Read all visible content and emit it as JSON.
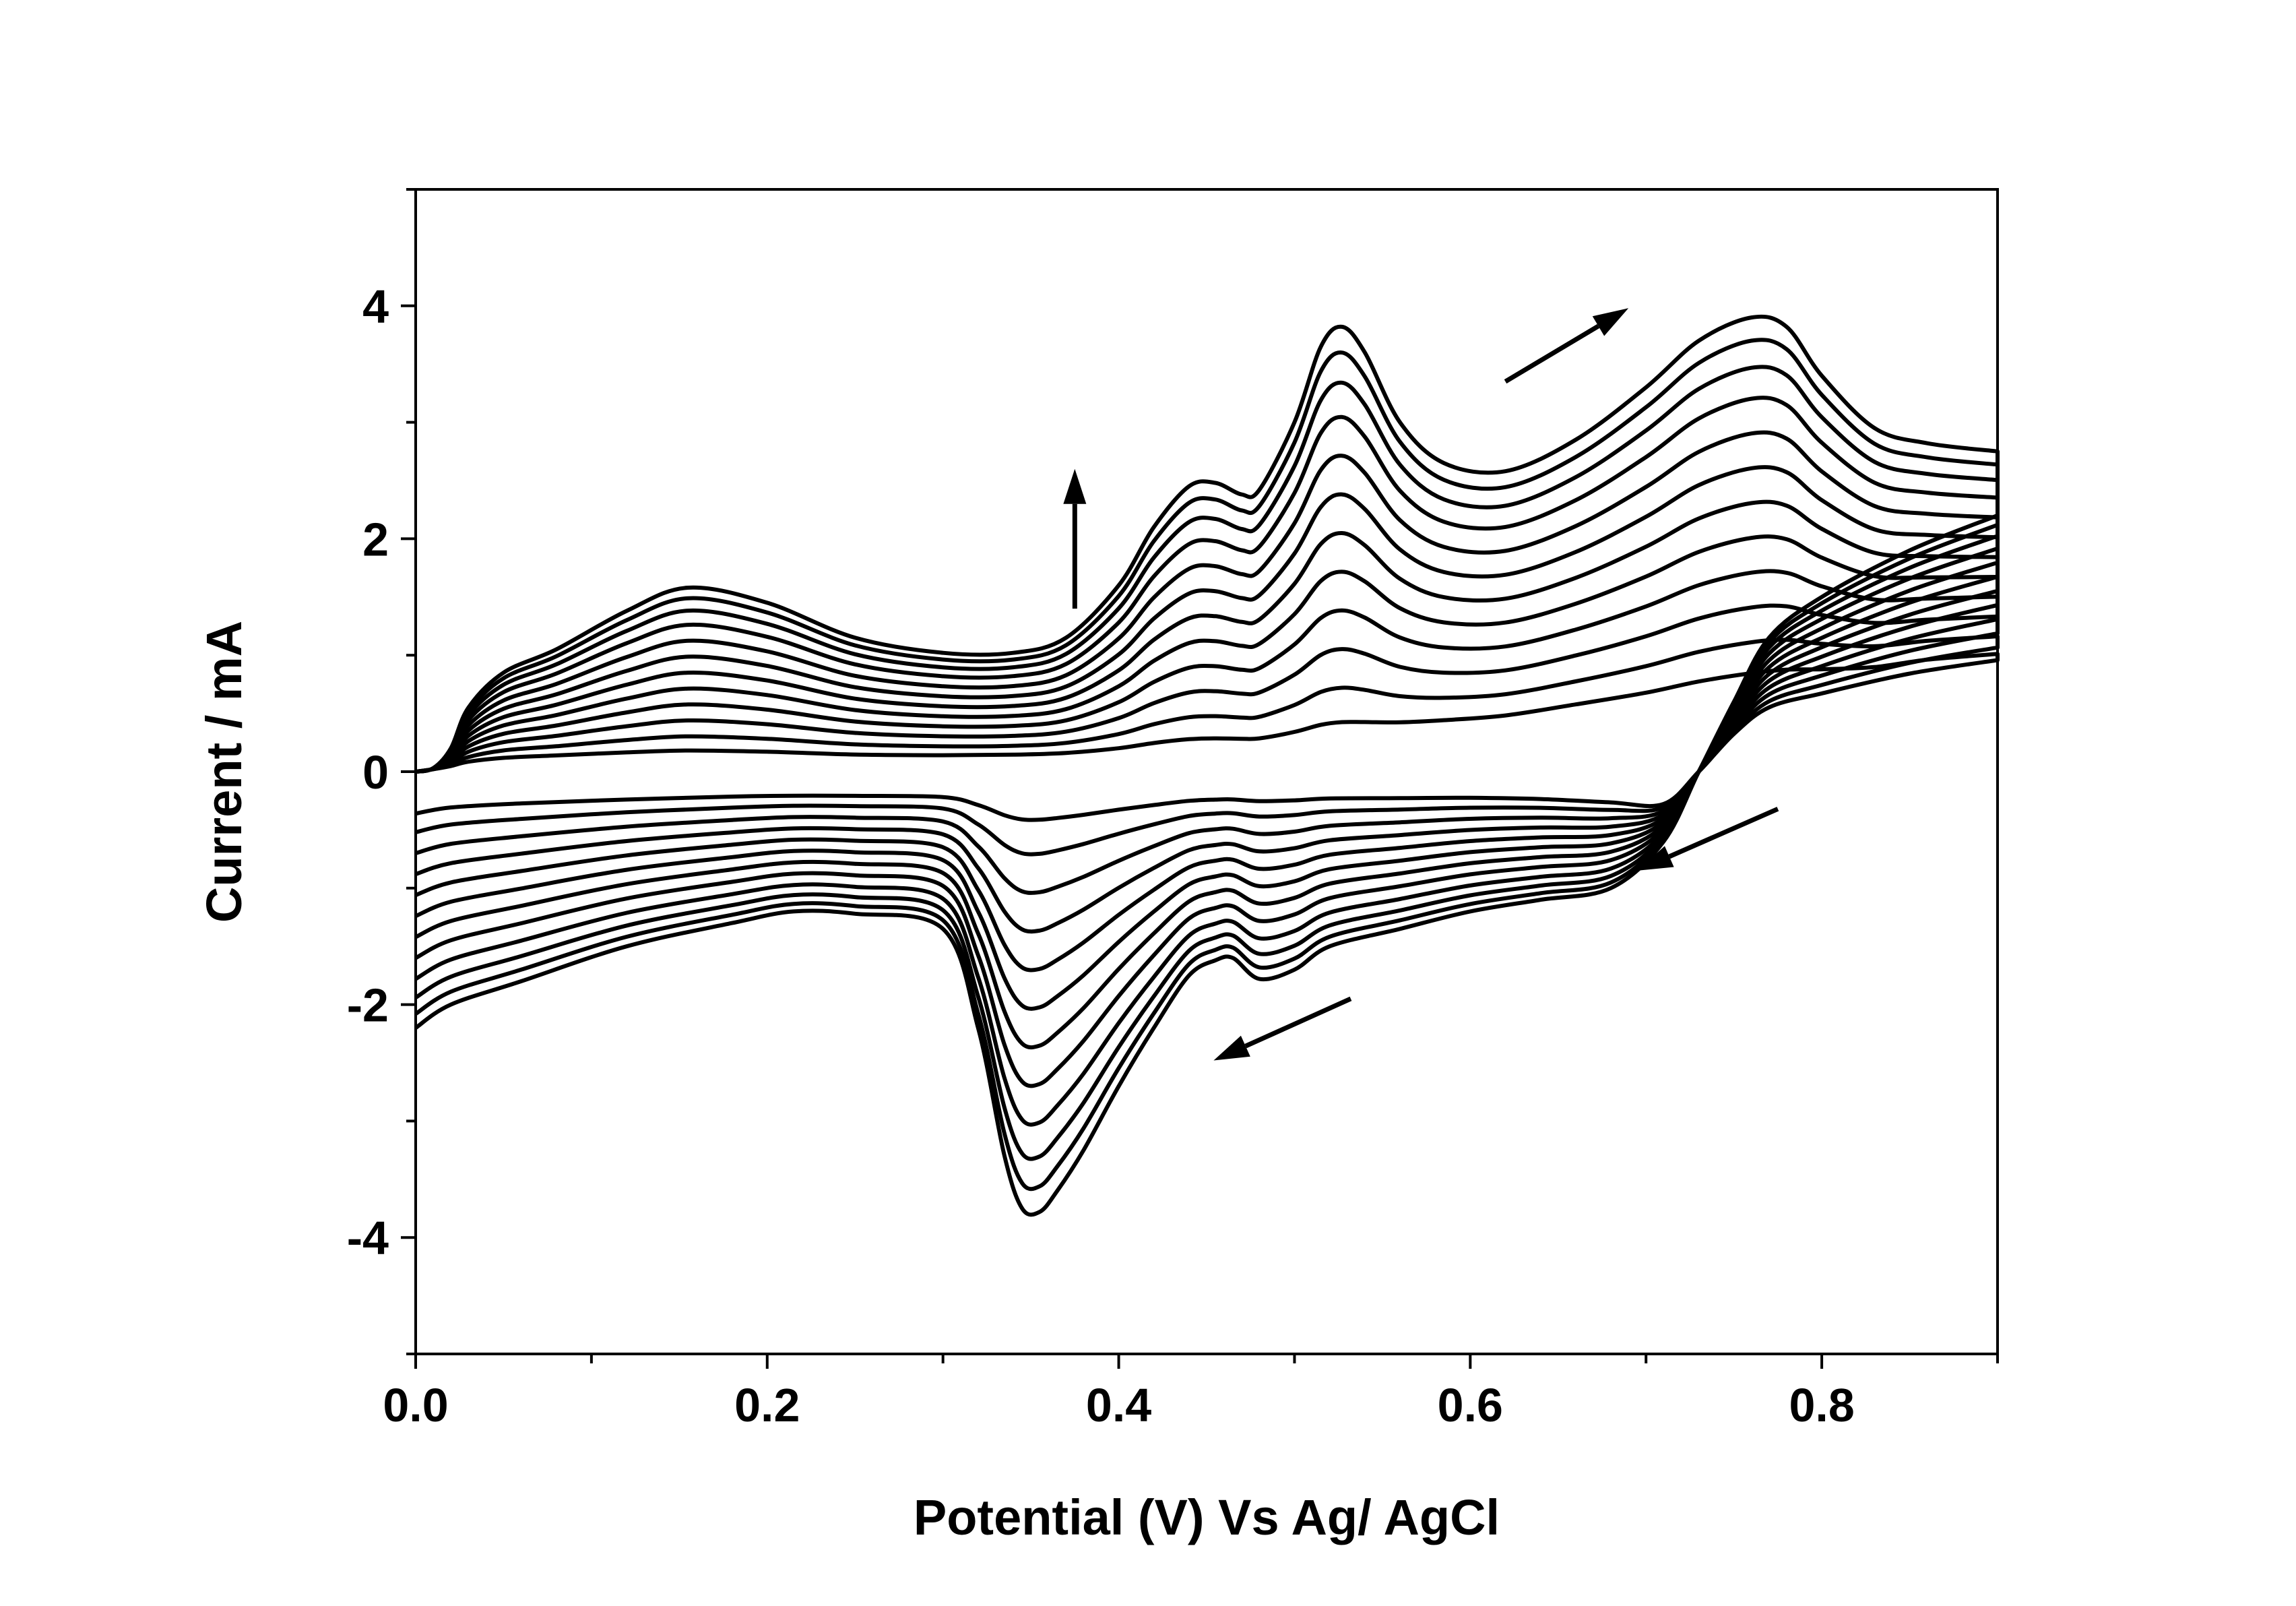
{
  "chart_data": {
    "type": "line",
    "title": "",
    "xlabel": "Potential (V) Vs Ag/ AgCl",
    "ylabel": "Current / mA",
    "xlim": [
      0.0,
      0.9
    ],
    "ylim": [
      -5,
      5
    ],
    "x_ticks": [
      {
        "value": 0.0,
        "label": "0.0"
      },
      {
        "value": 0.2,
        "label": "0.2"
      },
      {
        "value": 0.4,
        "label": "0.4"
      },
      {
        "value": 0.6,
        "label": "0.6"
      },
      {
        "value": 0.8,
        "label": "0.8"
      }
    ],
    "y_ticks": [
      {
        "value": -4,
        "label": "-4"
      },
      {
        "value": -2,
        "label": "-2"
      },
      {
        "value": 0,
        "label": "0"
      },
      {
        "value": 2,
        "label": "2"
      },
      {
        "value": 4,
        "label": "4"
      }
    ],
    "x_minor_ticks": [
      0.1,
      0.3,
      0.5,
      0.7,
      0.9
    ],
    "y_minor_ticks": [
      -5,
      -3,
      -1,
      1,
      3,
      5
    ],
    "grid": false,
    "legend": "none",
    "series_description": "12 successive cyclic voltammogram scans; peak currents grow with cycle number",
    "series_scale": [
      0.08,
      0.16,
      0.25,
      0.34,
      0.43,
      0.52,
      0.61,
      0.7,
      0.79,
      0.87,
      0.94,
      1.0
    ],
    "anodic_profile": {
      "x": [
        0.0,
        0.01,
        0.02,
        0.03,
        0.05,
        0.08,
        0.12,
        0.155,
        0.2,
        0.25,
        0.3,
        0.34,
        0.37,
        0.4,
        0.42,
        0.44,
        0.455,
        0.47,
        0.48,
        0.5,
        0.515,
        0.527,
        0.54,
        0.56,
        0.585,
        0.62,
        0.66,
        0.7,
        0.73,
        0.76,
        0.78,
        0.8,
        0.83,
        0.86,
        0.9
      ],
      "y": [
        0.0,
        0.03,
        0.2,
        0.55,
        0.85,
        1.05,
        1.38,
        1.58,
        1.45,
        1.15,
        1.02,
        1.02,
        1.15,
        1.6,
        2.1,
        2.45,
        2.48,
        2.38,
        2.42,
        3.0,
        3.65,
        3.82,
        3.6,
        3.0,
        2.65,
        2.58,
        2.85,
        3.3,
        3.7,
        3.9,
        3.82,
        3.4,
        2.95,
        2.82,
        2.75
      ]
    },
    "cathodic_profile": {
      "x": [
        0.9,
        0.85,
        0.8,
        0.77,
        0.75,
        0.73,
        0.71,
        0.68,
        0.64,
        0.6,
        0.56,
        0.52,
        0.5,
        0.48,
        0.465,
        0.455,
        0.44,
        0.42,
        0.4,
        0.38,
        0.365,
        0.355,
        0.345,
        0.335,
        0.32,
        0.3,
        0.25,
        0.215,
        0.18,
        0.12,
        0.06,
        0.02,
        0.0
      ],
      "y": [
        2.2,
        1.9,
        1.5,
        1.15,
        0.6,
        0.0,
        -0.6,
        -1.0,
        -1.1,
        -1.2,
        -1.35,
        -1.5,
        -1.7,
        -1.78,
        -1.6,
        -1.62,
        -1.75,
        -2.2,
        -2.7,
        -3.25,
        -3.6,
        -3.78,
        -3.75,
        -3.3,
        -2.2,
        -1.35,
        -1.22,
        -1.2,
        -1.3,
        -1.5,
        -1.8,
        -2.0,
        -2.2
      ]
    },
    "base_anodic": [
      0.0,
      0.02,
      0.035,
      0.045,
      0.055,
      0.06,
      0.06,
      0.06,
      0.06,
      0.06,
      0.065,
      0.07,
      0.075,
      0.08,
      0.085,
      0.09,
      0.095,
      0.1,
      0.1,
      0.11,
      0.12,
      0.13,
      0.15,
      0.2,
      0.25,
      0.3,
      0.38,
      0.45,
      0.52,
      0.58,
      0.62,
      0.66,
      0.72,
      0.8,
      0.86
    ],
    "base_cathodic": [
      0.85,
      0.75,
      0.6,
      0.5,
      0.3,
      0.0,
      -0.25,
      -0.2,
      -0.16,
      -0.14,
      -0.13,
      -0.12,
      -0.12,
      -0.12,
      -0.12,
      -0.12,
      -0.12,
      -0.12,
      -0.12,
      -0.12,
      -0.12,
      -0.12,
      -0.12,
      -0.12,
      -0.12,
      -0.12,
      -0.12,
      -0.12,
      -0.12,
      -0.13,
      -0.14,
      -0.16,
      -0.2
    ],
    "annotations": [
      {
        "type": "arrow",
        "meaning": "increasing cycle number",
        "from": [
          0.375,
          1.4
        ],
        "to": [
          0.375,
          2.6
        ]
      },
      {
        "type": "arrow",
        "meaning": "forward scan direction",
        "from": [
          0.62,
          3.35
        ],
        "to": [
          0.69,
          3.98
        ]
      },
      {
        "type": "arrow",
        "meaning": "reverse scan direction",
        "from": [
          0.775,
          -0.32
        ],
        "to": [
          0.695,
          -0.85
        ]
      },
      {
        "type": "arrow",
        "meaning": "reverse scan direction",
        "from": [
          0.532,
          -1.95
        ],
        "to": [
          0.454,
          -2.48
        ]
      }
    ],
    "colors": {
      "line": "#000000",
      "background": "#ffffff"
    }
  }
}
